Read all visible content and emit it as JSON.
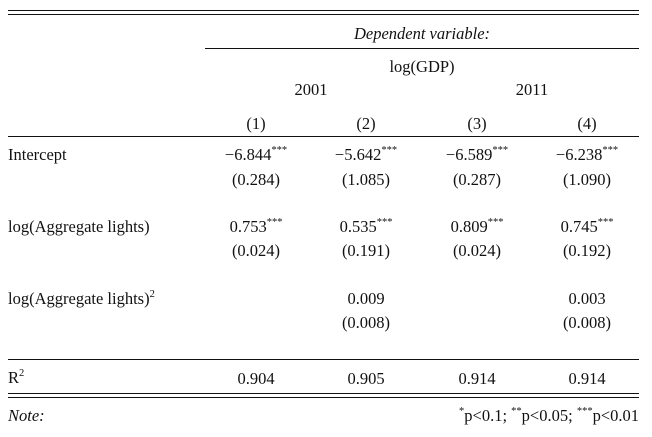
{
  "header": {
    "dependent_variable": "Dependent variable:",
    "dependent_name": "log(GDP)",
    "years": [
      "2001",
      "2011"
    ],
    "columns": [
      "(1)",
      "(2)",
      "(3)",
      "(4)"
    ]
  },
  "rows": [
    {
      "label": "Intercept",
      "label_sup": "",
      "coefs": [
        {
          "value": "−6.844",
          "stars": "***"
        },
        {
          "value": "−5.642",
          "stars": "***"
        },
        {
          "value": "−6.589",
          "stars": "***"
        },
        {
          "value": "−6.238",
          "stars": "***"
        }
      ],
      "ses": [
        "(0.284)",
        "(1.085)",
        "(0.287)",
        "(1.090)"
      ]
    },
    {
      "label": "log(Aggregate lights)",
      "label_sup": "",
      "coefs": [
        {
          "value": "0.753",
          "stars": "***"
        },
        {
          "value": "0.535",
          "stars": "***"
        },
        {
          "value": "0.809",
          "stars": "***"
        },
        {
          "value": "0.745",
          "stars": "***"
        }
      ],
      "ses": [
        "(0.024)",
        "(0.191)",
        "(0.024)",
        "(0.192)"
      ]
    },
    {
      "label": "log(Aggregate lights)",
      "label_sup": "2",
      "coefs": [
        {
          "value": "",
          "stars": ""
        },
        {
          "value": "0.009",
          "stars": ""
        },
        {
          "value": "",
          "stars": ""
        },
        {
          "value": "0.003",
          "stars": ""
        }
      ],
      "ses": [
        "",
        "(0.008)",
        "",
        "(0.008)"
      ]
    }
  ],
  "r2": {
    "label": "R",
    "label_sup": "2",
    "values": [
      "0.904",
      "0.905",
      "0.914",
      "0.914"
    ]
  },
  "note": {
    "label": "Note:",
    "p1_stars": "*",
    "p1_text": "p<0.1;",
    "p2_stars": "**",
    "p2_text": "p<0.05;",
    "p3_stars": "***",
    "p3_text": "p<0.01"
  }
}
